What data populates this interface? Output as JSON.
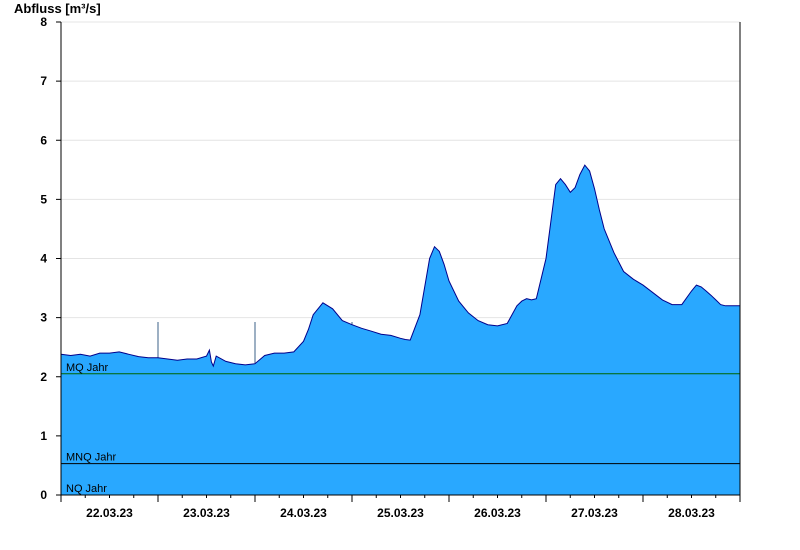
{
  "chart_data": {
    "type": "area",
    "title": "Abfluss [m³/s]",
    "ylabel": "Abfluss [m³/s]",
    "xlabel": "",
    "ylim": [
      0,
      8
    ],
    "yticks": [
      0,
      1,
      2,
      3,
      4,
      5,
      6,
      7,
      8
    ],
    "xlim_days": [
      0,
      7
    ],
    "x_tick_labels": [
      "22.03.23",
      "23.03.23",
      "24.03.23",
      "25.03.23",
      "26.03.23",
      "27.03.23",
      "28.03.23"
    ],
    "grid": true,
    "colors": {
      "fill": "#29a8ff",
      "line": "#00008b",
      "grid": "#e4e4e4",
      "reference": "#006400",
      "axis": "#000000"
    },
    "reference_lines": [
      {
        "label": "MQ Jahr",
        "value": 2.05
      },
      {
        "label": "MNQ Jahr",
        "value": 0.53
      },
      {
        "label": "NQ Jahr",
        "value": 0.0
      }
    ],
    "series": [
      {
        "x": [
          0,
          0.1,
          0.2,
          0.3,
          0.4,
          0.5,
          0.6,
          0.7,
          0.8,
          0.9,
          1.0,
          1.2,
          1.3,
          1.4,
          1.5,
          1.53,
          1.55,
          1.57,
          1.6,
          1.7,
          1.8,
          1.9,
          2.0,
          2.1,
          2.2,
          2.3,
          2.4,
          2.5,
          2.55,
          2.6,
          2.7,
          2.8,
          2.9,
          3.0,
          3.1,
          3.2,
          3.3,
          3.4,
          3.5,
          3.55,
          3.6,
          3.7,
          3.8,
          3.85,
          3.9,
          3.95,
          4.0,
          4.1,
          4.2,
          4.3,
          4.4,
          4.5,
          4.6,
          4.7,
          4.75,
          4.8,
          4.85,
          4.9,
          5.0,
          5.1,
          5.15,
          5.2,
          5.25,
          5.3,
          5.35,
          5.4,
          5.45,
          5.5,
          5.55,
          5.6,
          5.7,
          5.8,
          5.9,
          6.0,
          6.2,
          6.3,
          6.4,
          6.5,
          6.55,
          6.6,
          6.65,
          6.7,
          6.75,
          6.8,
          6.85,
          6.9,
          6.95,
          7.0
        ],
        "values": [
          2.38,
          2.36,
          2.38,
          2.35,
          2.4,
          2.4,
          2.42,
          2.38,
          2.34,
          2.32,
          2.32,
          2.28,
          2.3,
          2.3,
          2.35,
          2.45,
          2.25,
          2.18,
          2.35,
          2.26,
          2.22,
          2.2,
          2.22,
          2.36,
          2.4,
          2.4,
          2.42,
          2.6,
          2.8,
          3.05,
          3.25,
          3.15,
          2.95,
          2.88,
          2.82,
          2.77,
          2.72,
          2.7,
          2.65,
          2.63,
          2.62,
          3.05,
          4.0,
          4.2,
          4.12,
          3.9,
          3.62,
          3.28,
          3.08,
          2.95,
          2.88,
          2.86,
          2.9,
          3.2,
          3.28,
          3.32,
          3.3,
          3.32,
          4.0,
          5.25,
          5.35,
          5.25,
          5.12,
          5.2,
          5.42,
          5.58,
          5.48,
          5.18,
          4.82,
          4.5,
          4.1,
          3.78,
          3.65,
          3.55,
          3.3,
          3.22,
          3.22,
          3.45,
          3.55,
          3.52,
          3.45,
          3.38,
          3.3,
          3.22,
          3.2,
          3.2,
          3.2,
          3.2
        ]
      }
    ]
  }
}
